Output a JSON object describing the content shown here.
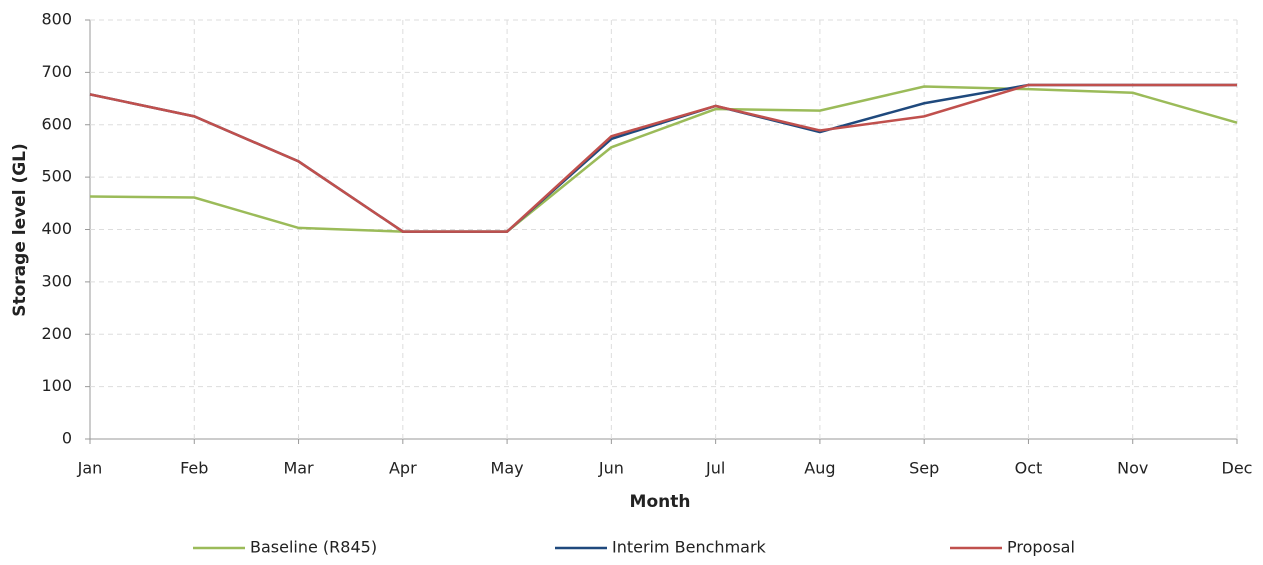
{
  "chart_data": {
    "type": "line",
    "x_label": "Month",
    "y_label": "Storage level (GL)",
    "categories": [
      "Jan",
      "Feb",
      "Mar",
      "Apr",
      "May",
      "Jun",
      "Jul",
      "Aug",
      "Sep",
      "Oct",
      "Nov",
      "Dec"
    ],
    "series": [
      {
        "name": "Baseline (R845)",
        "color": "#9bbb59",
        "values": [
          463,
          461,
          403,
          396,
          396,
          557,
          630,
          627,
          673,
          668,
          661,
          604
        ]
      },
      {
        "name": "Interim Benchmark",
        "color": "#1f497d",
        "values": [
          658,
          616,
          530,
          396,
          396,
          573,
          636,
          586,
          641,
          676,
          676,
          676
        ]
      },
      {
        "name": "Proposal",
        "color": "#c0504d",
        "values": [
          658,
          616,
          530,
          396,
          396,
          578,
          636,
          589,
          616,
          676,
          676,
          676
        ]
      }
    ],
    "ylim": [
      0,
      800
    ],
    "yticks": [
      0,
      100,
      200,
      300,
      400,
      500,
      600,
      700,
      800
    ],
    "grid": true,
    "legend": "bottom"
  }
}
